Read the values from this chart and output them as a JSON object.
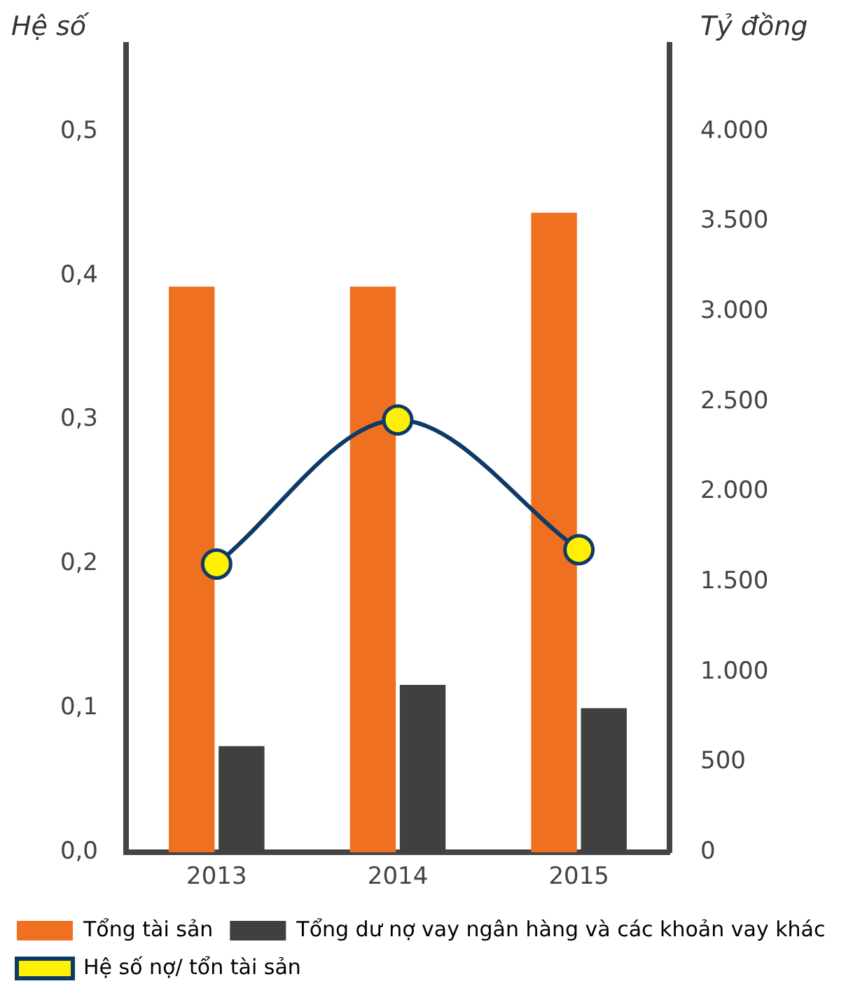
{
  "chart_data": {
    "type": "bar",
    "ylabel": "Hệ số",
    "y2label": "Tỷ đồng",
    "categories": [
      "2013",
      "2014",
      "2015"
    ],
    "series": [
      {
        "name": "Tổng tài sản",
        "color": "#f07022",
        "values": [
          3140,
          3140,
          3550
        ],
        "axis": "y2"
      },
      {
        "name": "Tổng dư nợ vay ngân hàng và các khoản vay khác",
        "color": "#404040",
        "values": [
          590,
          930,
          800
        ],
        "axis": "y2"
      },
      {
        "name": "Hệ số nợ/ tổn tài sản",
        "type": "line",
        "color": "#0d3a66",
        "values": [
          0.2,
          0.3,
          0.21
        ],
        "axis": "y"
      }
    ],
    "ylim": [
      0,
      0.56
    ],
    "yticks": [
      {
        "value": 0,
        "label": "0,0"
      },
      {
        "value": 0.1,
        "label": "0,1"
      },
      {
        "value": 0.2,
        "label": "0,2"
      },
      {
        "value": 0.3,
        "label": "0,3"
      },
      {
        "value": 0.4,
        "label": "0,4"
      },
      {
        "value": 0.5,
        "label": "0,5"
      }
    ],
    "y2lim": [
      0,
      4480
    ],
    "y2ticks": [
      0,
      500,
      {
        "value": 1000,
        "label": "1.000"
      },
      {
        "value": 1500,
        "label": "1.500"
      },
      {
        "value": 2000,
        "label": "2.000"
      },
      {
        "value": 2500,
        "label": "2.500"
      },
      {
        "value": 3000,
        "label": "3.000"
      },
      {
        "value": 3500,
        "label": "3.500"
      },
      {
        "value": 4000,
        "label": "4.000"
      }
    ],
    "marker": "circle",
    "grid": false,
    "legend": "bottom"
  }
}
